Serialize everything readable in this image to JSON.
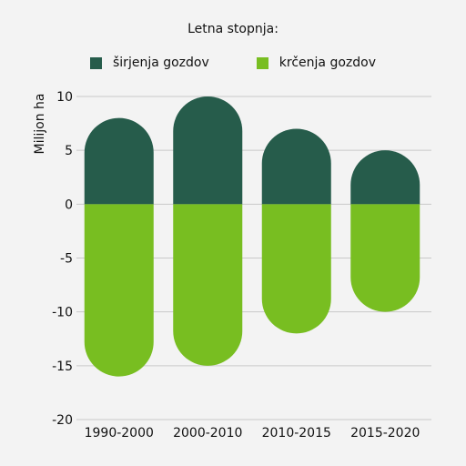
{
  "chart_data": {
    "type": "bar",
    "legend_title": "Letna stopnja:",
    "categories": [
      "1990-2000",
      "2000-2010",
      "2010-2015",
      "2015-2020"
    ],
    "series": [
      {
        "name": "širjenja gozdov",
        "color": "#265c4b",
        "values": [
          8,
          10,
          7,
          5
        ]
      },
      {
        "name": "krčenja gozdov",
        "color": "#78be21",
        "values": [
          -16,
          -15,
          -12,
          -10
        ]
      }
    ],
    "ylabel": "Milijon ha",
    "ylim": [
      -20,
      10
    ],
    "yticks": [
      10,
      5,
      0,
      -5,
      -10,
      -15,
      -20
    ],
    "grid": true,
    "legend_position": "top-center"
  }
}
